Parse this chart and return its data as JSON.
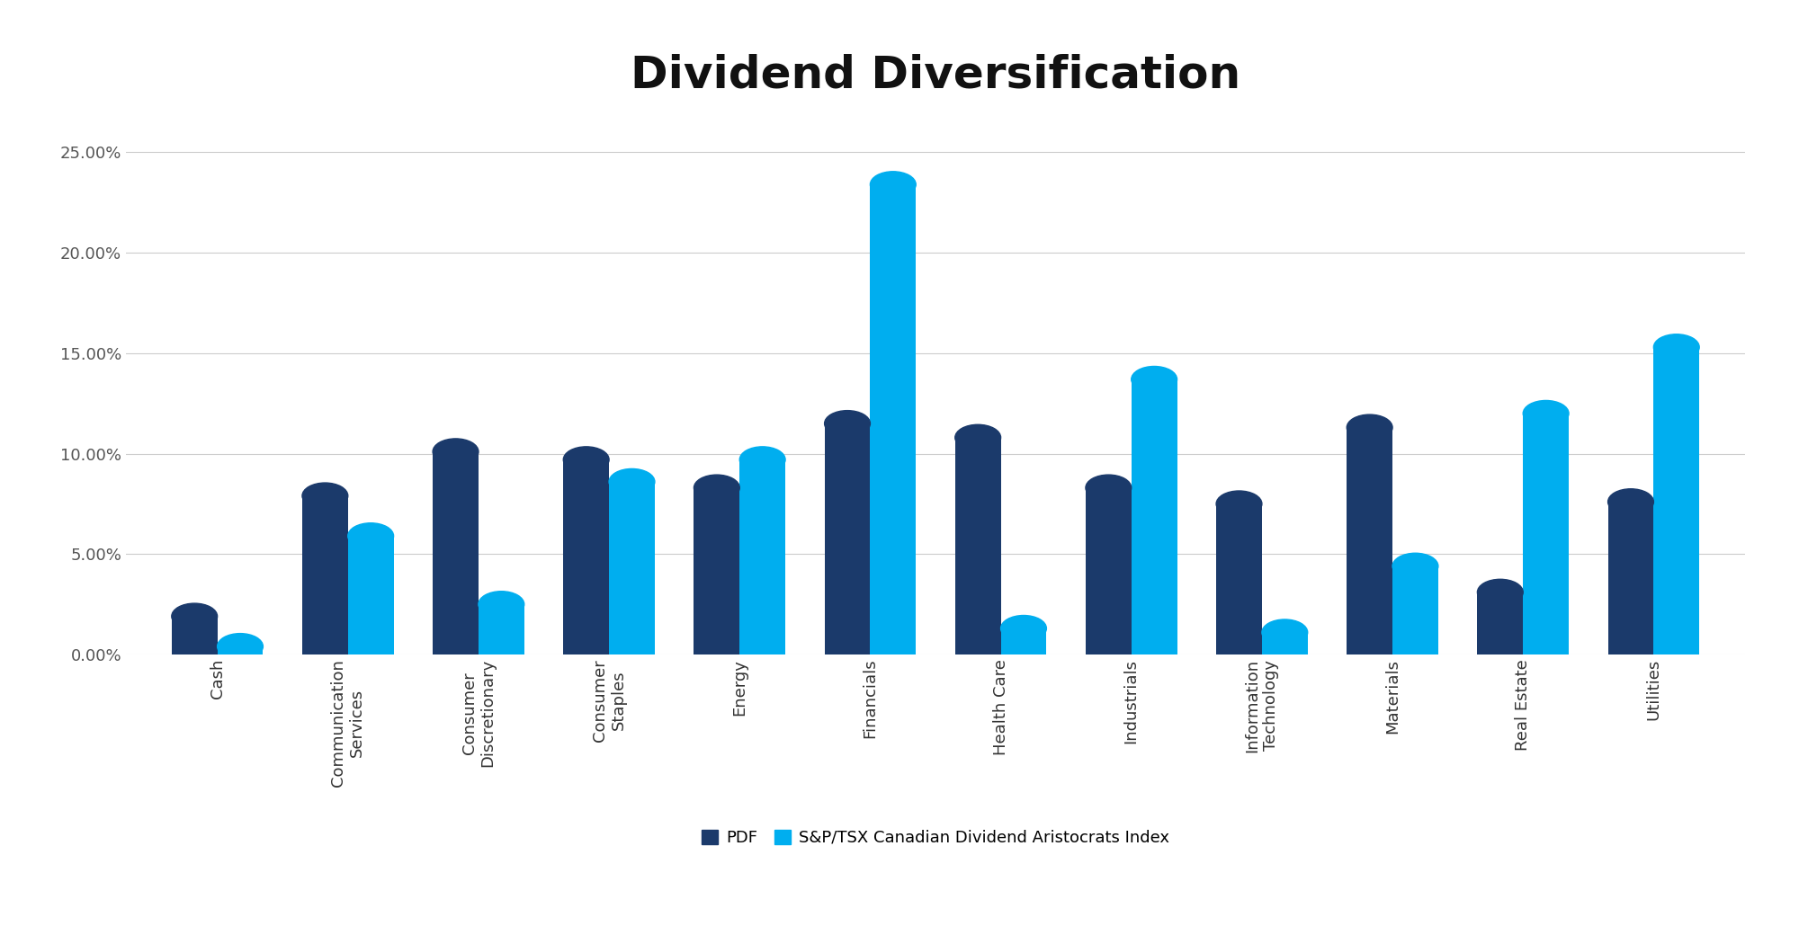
{
  "title": "Dividend Diversification",
  "categories": [
    "Cash",
    "Communication\nServices",
    "Consumer\nDiscretionary",
    "Consumer\nStaples",
    "Energy",
    "Financials",
    "Health Care",
    "Industrials",
    "Information\nTechnology",
    "Materials",
    "Real Estate",
    "Utilities"
  ],
  "pdf_values": [
    0.019,
    0.079,
    0.101,
    0.097,
    0.083,
    0.115,
    0.108,
    0.083,
    0.075,
    0.113,
    0.031,
    0.076
  ],
  "index_values": [
    0.004,
    0.059,
    0.025,
    0.086,
    0.097,
    0.234,
    0.013,
    0.137,
    0.011,
    0.044,
    0.12,
    0.153
  ],
  "pdf_color": "#1b3a6b",
  "index_color": "#00aeef",
  "title_fontsize": 36,
  "tick_label_fontsize": 13,
  "legend_fontsize": 13,
  "ylim": [
    0,
    0.27
  ],
  "yticks": [
    0.0,
    0.05,
    0.1,
    0.15,
    0.2,
    0.25
  ],
  "ytick_labels": [
    "0.00%",
    "5.00%",
    "10.00%",
    "15.00%",
    "20.00%",
    "25.00%"
  ],
  "background_color": "#ffffff",
  "grid_color": "#cccccc",
  "legend_labels": [
    "PDF",
    "S&P/TSX Canadian Dividend Aristocrats Index"
  ],
  "bar_width": 0.35
}
